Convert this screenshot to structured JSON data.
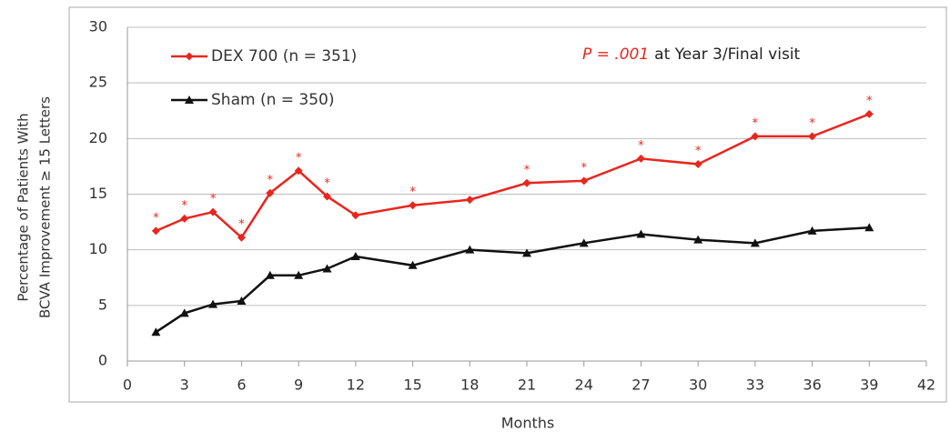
{
  "chart_data": {
    "type": "line",
    "xlabel": "Months",
    "ylabel": [
      "Percentage of Patients With",
      "BCVA Improvement ≥ 15 Letters"
    ],
    "xlim": [
      0,
      42
    ],
    "xticks": [
      0,
      3,
      6,
      9,
      12,
      15,
      18,
      21,
      24,
      27,
      30,
      33,
      36,
      39,
      42
    ],
    "ylim": [
      0,
      30
    ],
    "yticks": [
      0,
      5,
      10,
      15,
      20,
      25,
      30
    ],
    "grid": true,
    "legend": "upper left",
    "annotation": [
      {
        "text": "P = .001",
        "color": "#e8261e"
      },
      {
        "text": "at Year 3/Final visit",
        "color": "#222222"
      }
    ],
    "series": [
      {
        "name": "DEX 700 (n = 351)",
        "color": "#e8261e",
        "marker": "diamond",
        "x": [
          1.5,
          3,
          4.5,
          6,
          7.5,
          9,
          10.5,
          12,
          15,
          18,
          21,
          24,
          27,
          30,
          33,
          36,
          39
        ],
        "values": [
          11.7,
          12.8,
          13.4,
          11.1,
          15.1,
          17.1,
          14.8,
          13.1,
          14.0,
          14.5,
          16.0,
          16.2,
          18.2,
          17.7,
          20.2,
          20.2,
          22.2
        ],
        "point_labels": [
          "*",
          "*",
          "*",
          "*",
          "*",
          "*",
          "*",
          null,
          "*",
          null,
          "*",
          "*",
          "*",
          "*",
          "*",
          "*",
          "*"
        ]
      },
      {
        "name": "Sham (n = 350)",
        "color": "#111111",
        "marker": "triangle",
        "x": [
          1.5,
          3,
          4.5,
          6,
          7.5,
          9,
          10.5,
          12,
          15,
          18,
          21,
          24,
          27,
          30,
          33,
          36,
          39
        ],
        "values": [
          2.6,
          4.3,
          5.1,
          5.4,
          7.7,
          7.7,
          8.3,
          9.4,
          8.6,
          10.0,
          9.7,
          10.6,
          11.4,
          10.9,
          10.6,
          11.7,
          12.0
        ]
      }
    ]
  }
}
